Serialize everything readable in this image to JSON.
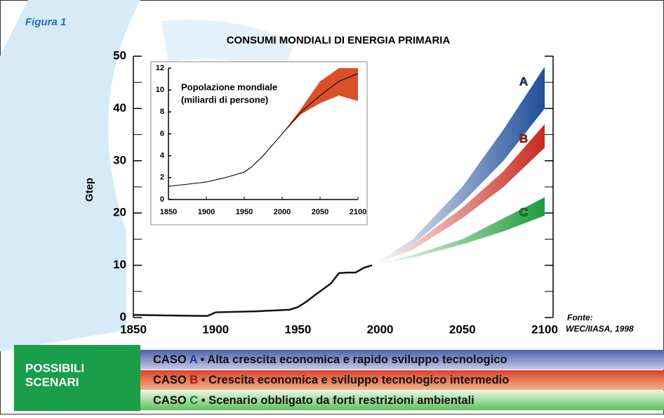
{
  "figure_label": "Figura 1",
  "chart_data": [
    {
      "type": "line",
      "title": "CONSUMI MONDIALI DI ENERGIA PRIMARIA",
      "y_label": "Gtep",
      "xlim": [
        1850,
        2100
      ],
      "xticks": [
        1850,
        1900,
        1950,
        2000,
        2050,
        2100
      ],
      "ylim": [
        0,
        50
      ],
      "yticks": [
        0,
        10,
        20,
        30,
        40,
        50
      ],
      "yminor": [
        5,
        15,
        25,
        35,
        45
      ],
      "x": [
        1850,
        1870,
        1895,
        1900,
        1925,
        1945,
        1950,
        1955,
        1960,
        1970,
        1975,
        1980,
        1985,
        1990,
        1995
      ],
      "values": [
        0.5,
        0.4,
        0.3,
        1.0,
        1.2,
        1.5,
        2.0,
        3.0,
        4.2,
        6.5,
        8.5,
        8.6,
        8.6,
        9.5,
        10.0
      ],
      "color": "#111111",
      "bands": [
        {
          "name": "A",
          "color": "#1f4e9a",
          "x": [
            1995,
            2020,
            2050,
            2075,
            2100
          ],
          "low": [
            10,
            14,
            22,
            30,
            40
          ],
          "high": [
            10,
            15,
            25,
            36,
            48
          ]
        },
        {
          "name": "B",
          "color": "#c8281e",
          "x": [
            1995,
            2020,
            2050,
            2075,
            2100
          ],
          "low": [
            10,
            13,
            19,
            25,
            32.5
          ],
          "high": [
            10,
            14,
            21,
            28,
            37
          ]
        },
        {
          "name": "C",
          "color": "#1f9a3a",
          "x": [
            1995,
            2020,
            2050,
            2075,
            2100
          ],
          "low": [
            10,
            11.5,
            14,
            16.5,
            19.5
          ],
          "high": [
            10,
            12,
            15,
            19,
            23
          ]
        }
      ],
      "source": [
        "Fonte:",
        "WEC/IIASA, 1998"
      ]
    },
    {
      "type": "line",
      "title": [
        "Popolazione mondiale",
        "(miliardi di persone)"
      ],
      "xlim": [
        1850,
        2100
      ],
      "xticks": [
        1850,
        1900,
        1950,
        2000,
        2050,
        2100
      ],
      "ylim": [
        0,
        12
      ],
      "yticks": [
        0,
        2,
        4,
        6,
        8,
        10,
        12
      ],
      "x": [
        1850,
        1900,
        1925,
        1950,
        1960,
        1975,
        2000,
        2025,
        2050,
        2075,
        2100
      ],
      "values": [
        1.2,
        1.6,
        2.0,
        2.5,
        3.0,
        4.0,
        6.0,
        8.0,
        9.5,
        10.8,
        11.5
      ],
      "color": "#111111",
      "bands": [
        {
          "color": "#d9502a",
          "x": [
            2000,
            2025,
            2050,
            2075,
            2100
          ],
          "low": [
            6,
            7.8,
            8.8,
            9.5,
            9.0
          ],
          "high": [
            6,
            8.3,
            10.8,
            12,
            12
          ]
        }
      ]
    }
  ],
  "legend": {
    "heading": [
      "POSSIBILI",
      "SCENARI"
    ],
    "cases": [
      {
        "prefix": "CASO ",
        "letter": "A",
        "text": " • Alta crescita economica e rapido sviluppo tecnologico"
      },
      {
        "prefix": "CASO ",
        "letter": "B",
        "text": " • Crescita economica e sviluppo tecnologico intermedio"
      },
      {
        "prefix": "CASO ",
        "letter": "C",
        "text": " • Scenario obbligato da forti restrizioni ambientali"
      }
    ]
  }
}
